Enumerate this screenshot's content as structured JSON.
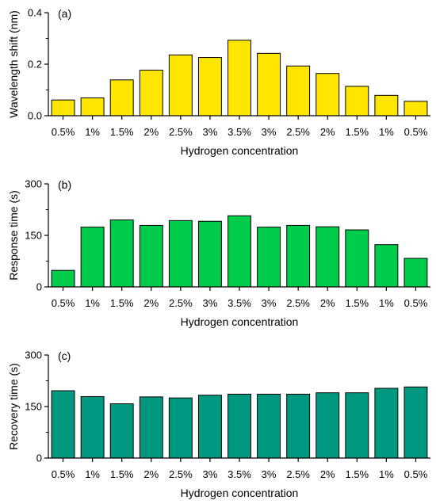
{
  "figure": {
    "panels": [
      "(a)",
      "(b)",
      "(c)"
    ]
  },
  "chart_data": [
    {
      "type": "bar",
      "panel_label": "(a)",
      "categories": [
        "0.5%",
        "1%",
        "1.5%",
        "2%",
        "2.5%",
        "3%",
        "3.5%",
        "3%",
        "2.5%",
        "2%",
        "1.5%",
        "1%",
        "0.5%"
      ],
      "values": [
        0.061,
        0.069,
        0.139,
        0.177,
        0.236,
        0.226,
        0.293,
        0.242,
        0.193,
        0.164,
        0.114,
        0.079,
        0.056
      ],
      "xlabel": "Hydrogen concentration",
      "ylabel": "Wavelength shift (nm)",
      "ylim": [
        0,
        0.4
      ],
      "yticks": [
        "0.0",
        "0.2",
        "0.4"
      ],
      "color": "#FFE600",
      "grid": false
    },
    {
      "type": "bar",
      "panel_label": "(b)",
      "categories": [
        "0.5%",
        "1%",
        "1.5%",
        "2%",
        "2.5%",
        "3%",
        "3.5%",
        "3%",
        "2.5%",
        "2%",
        "1.5%",
        "1%",
        "0.5%"
      ],
      "values": [
        48,
        174,
        195,
        179,
        193,
        191,
        207,
        174,
        179,
        175,
        166,
        123,
        83
      ],
      "xlabel": "Hydrogen concentration",
      "ylabel": "Response time (s)",
      "ylim": [
        0,
        300
      ],
      "yticks": [
        "0",
        "150",
        "300"
      ],
      "color": "#00CC4C",
      "grid": false
    },
    {
      "type": "bar",
      "panel_label": "(c)",
      "categories": [
        "0.5%",
        "1%",
        "1.5%",
        "2%",
        "2.5%",
        "3%",
        "3.5%",
        "3%",
        "2.5%",
        "2%",
        "1.5%",
        "1%",
        "0.5%"
      ],
      "values": [
        196,
        179,
        158,
        178,
        175,
        183,
        186,
        186,
        186,
        190,
        190,
        203,
        207
      ],
      "xlabel": "Hydrogen concentration",
      "ylabel": "Recovery time (s)",
      "ylim": [
        0,
        300
      ],
      "yticks": [
        "0",
        "150",
        "300"
      ],
      "color": "#009980",
      "grid": false
    }
  ]
}
